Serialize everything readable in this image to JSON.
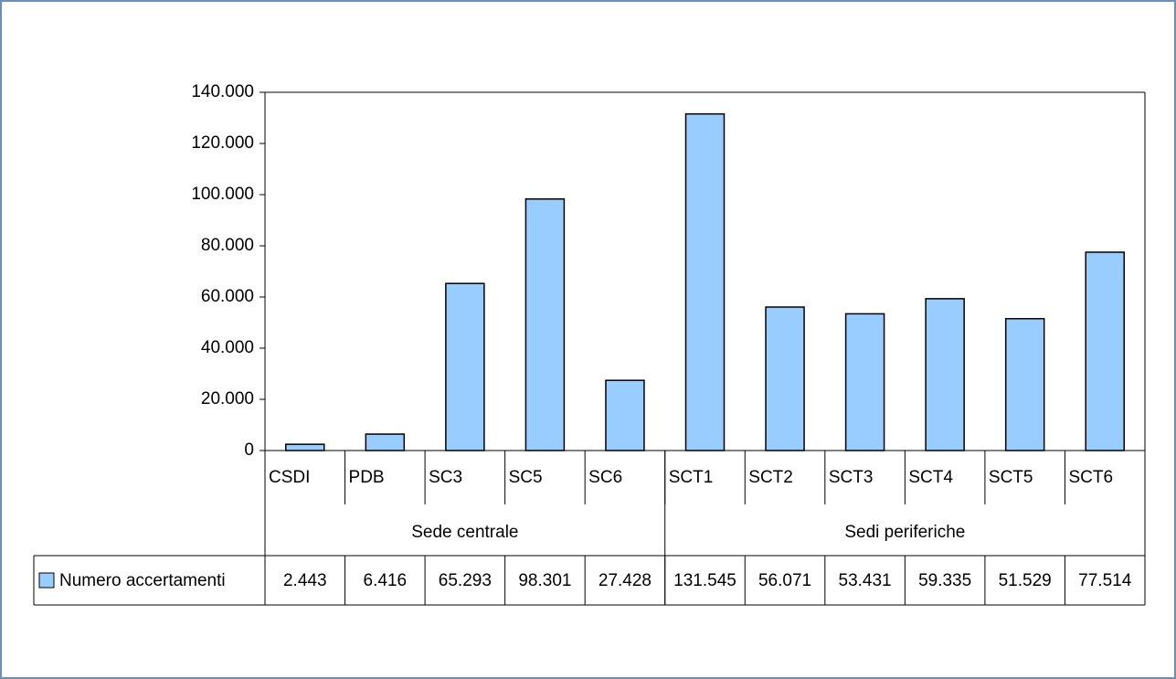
{
  "chart_data": {
    "type": "bar",
    "categories": [
      "CSDI",
      "PDB",
      "SC3",
      "SC5",
      "SC6",
      "SCT1",
      "SCT2",
      "SCT3",
      "SCT4",
      "SCT5",
      "SCT6"
    ],
    "groups": [
      {
        "label": "Sede centrale",
        "span": 5
      },
      {
        "label": "Sedi periferiche",
        "span": 6
      }
    ],
    "series": [
      {
        "name": "Numero accertamenti",
        "color": "#99ccff",
        "values": [
          2443,
          6416,
          65293,
          98301,
          27428,
          131545,
          56071,
          53431,
          59335,
          51529,
          77514
        ],
        "value_labels": [
          "2.443",
          "6.416",
          "65.293",
          "98.301",
          "27.428",
          "131.545",
          "56.071",
          "53.431",
          "59.335",
          "51.529",
          "77.514"
        ]
      }
    ],
    "ylim": [
      0,
      140000
    ],
    "yticks": [
      0,
      {
        "value": 20000,
        "label": "20.000"
      },
      {
        "value": 40000,
        "label": "40.000"
      },
      {
        "value": 60000,
        "label": "60.000"
      },
      {
        "value": 80000,
        "label": "80.000"
      },
      {
        "value": 100000,
        "label": "100.000"
      },
      {
        "value": 120000,
        "label": "120.000"
      },
      {
        "value": 140000,
        "label": "140.000"
      }
    ],
    "grid": false
  }
}
